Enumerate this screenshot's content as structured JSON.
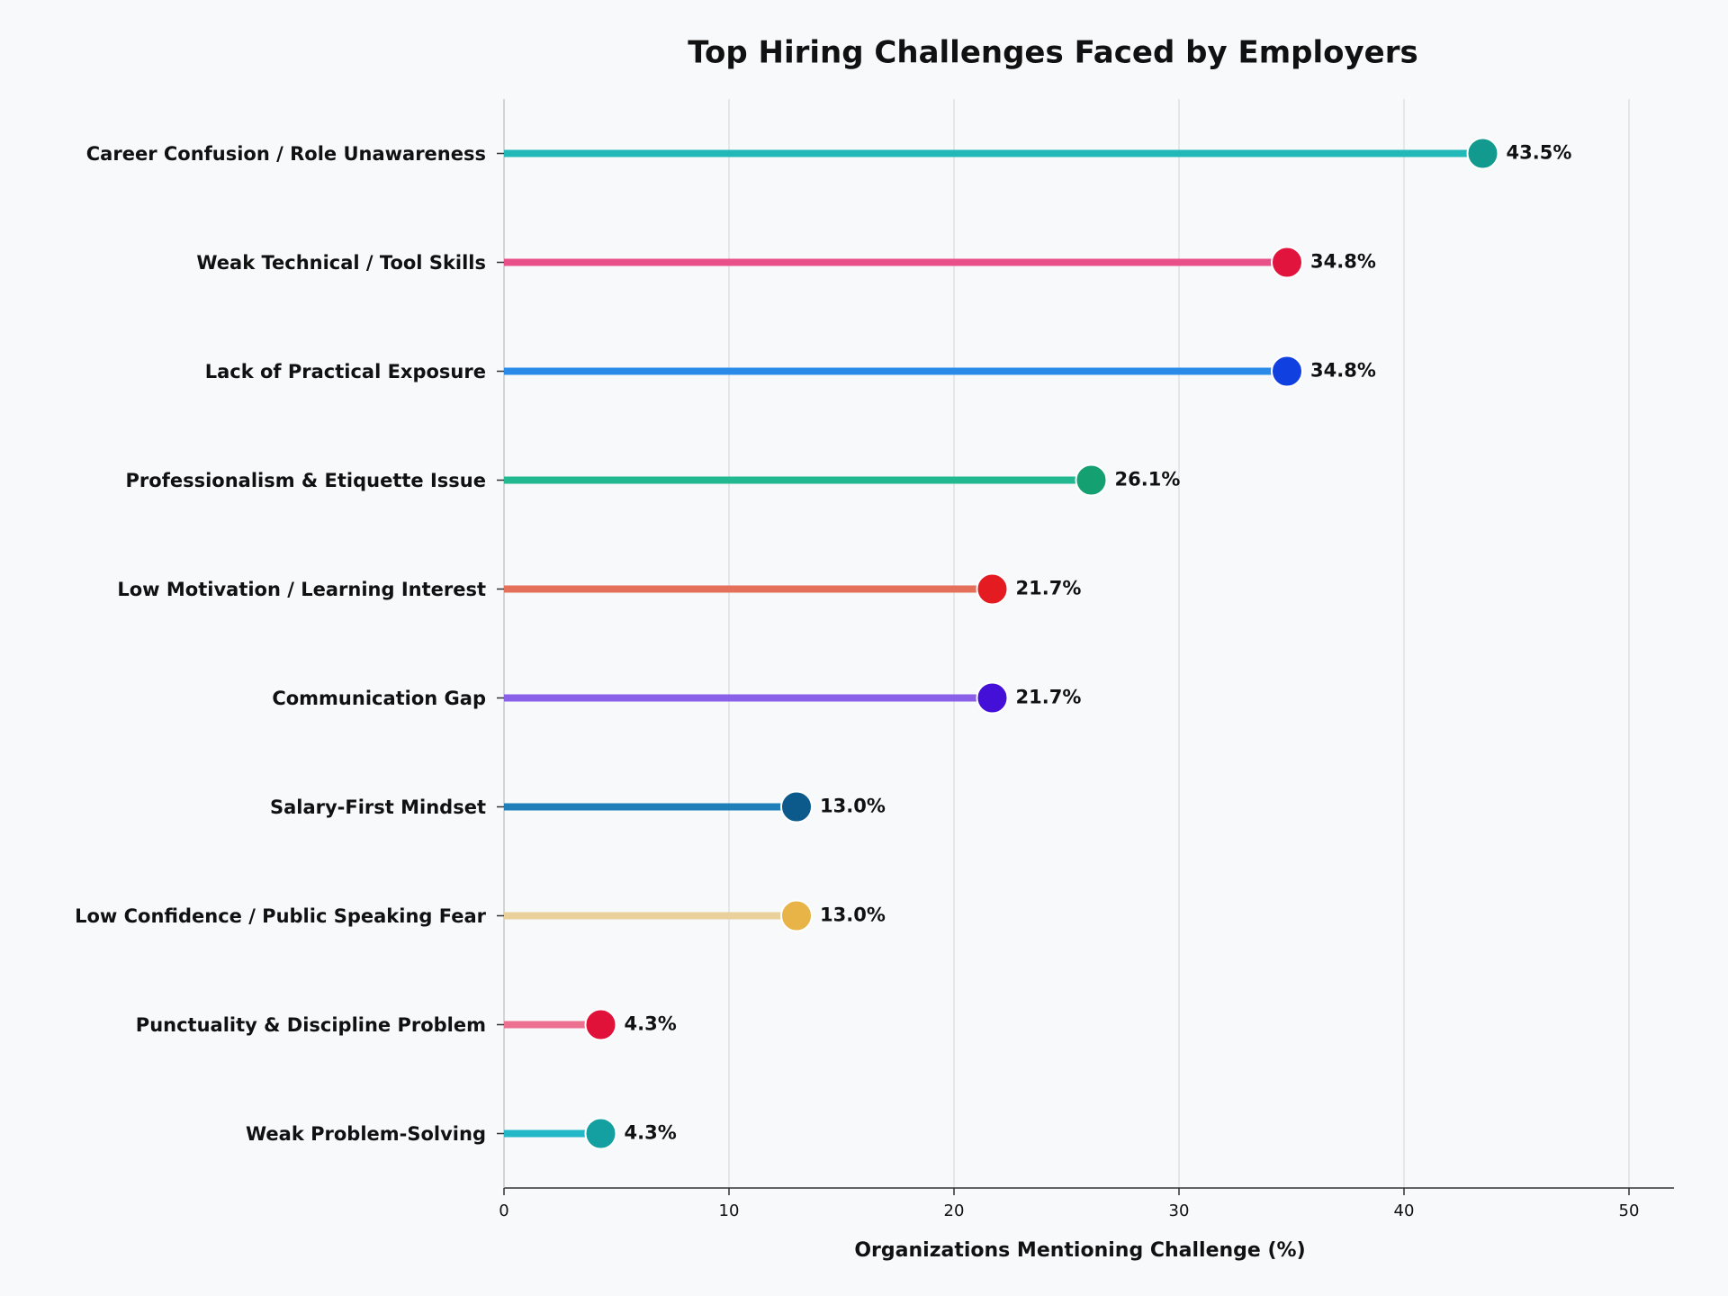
{
  "chart_data": {
    "type": "lollipop",
    "title": "Top Hiring Challenges Faced by Employers",
    "xlabel": "Organizations Mentioning Challenge (%)",
    "categories": [
      "Career Confusion / Role Unawareness",
      "Weak Technical / Tool Skills",
      "Lack of Practical Exposure",
      "Professionalism & Etiquette Issue",
      "Low Motivation / Learning Interest",
      "Communication Gap",
      "Salary-First Mindset",
      "Low Confidence / Public Speaking Fear",
      "Punctuality & Discipline Problem",
      "Weak Problem-Solving"
    ],
    "values": [
      43.5,
      34.8,
      34.8,
      26.1,
      21.7,
      21.7,
      13.0,
      13.0,
      4.3,
      4.3
    ],
    "value_labels": [
      "43.5%",
      "34.8%",
      "34.8%",
      "26.1%",
      "21.7%",
      "21.7%",
      "13.0%",
      "13.0%",
      "4.3%",
      "4.3%"
    ],
    "colors": [
      "#22b8b8",
      "#e8508a",
      "#2a8ae8",
      "#22b890",
      "#e4705a",
      "#8a60e8",
      "#1f7fb8",
      "#ead09a",
      "#ec7090",
      "#22b8c8"
    ],
    "marker_colors": [
      "#139a8e",
      "#e0143c",
      "#1040e0",
      "#14a070",
      "#e41c22",
      "#4410d8",
      "#0c5a8c",
      "#e8b448",
      "#e0123a",
      "#14a0a0"
    ],
    "xlim": [
      0,
      52
    ],
    "xticks": [
      0,
      10,
      20,
      30,
      40,
      50
    ],
    "grid": true
  }
}
